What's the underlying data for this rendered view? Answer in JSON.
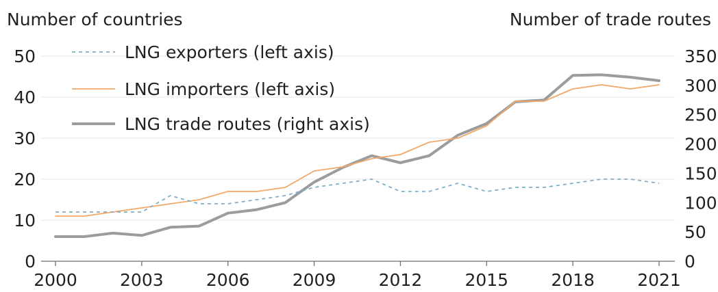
{
  "chart_data": {
    "type": "line",
    "ylabel_left": "Number of countries",
    "ylabel_right": "Number of trade routes",
    "x": [
      2000,
      2001,
      2002,
      2003,
      2004,
      2005,
      2006,
      2007,
      2008,
      2009,
      2010,
      2011,
      2012,
      2013,
      2014,
      2015,
      2016,
      2017,
      2018,
      2019,
      2020,
      2021
    ],
    "x_ticks": [
      "2000",
      "2003",
      "2006",
      "2009",
      "2012",
      "2015",
      "2018",
      "2021"
    ],
    "ylim_left": [
      0,
      50
    ],
    "yticks_left": [
      "0",
      "10",
      "20",
      "30",
      "40",
      "50"
    ],
    "ylim_right": [
      0,
      350
    ],
    "yticks_right": [
      "0",
      "50",
      "100",
      "150",
      "200",
      "250",
      "300",
      "350"
    ],
    "grid": true,
    "legend_position": "top-left",
    "series": [
      {
        "name": "LNG exporters (left axis)",
        "axis": "left",
        "style": "dashed",
        "color": "#7faec8",
        "values": [
          12,
          12,
          12,
          12,
          16,
          14,
          14,
          15,
          16,
          18,
          19,
          20,
          17,
          17,
          19,
          17,
          18,
          18,
          19,
          20,
          20,
          19
        ]
      },
      {
        "name": "LNG importers (left axis)",
        "axis": "left",
        "style": "solid",
        "color": "#f3a868",
        "values": [
          11,
          11,
          12,
          13,
          14,
          15,
          17,
          17,
          18,
          22,
          23,
          25,
          26,
          29,
          30,
          33,
          39,
          39,
          42,
          43,
          42,
          43
        ]
      },
      {
        "name": "LNG trade routes (right axis)",
        "axis": "right",
        "style": "solid",
        "color": "#9c9c9c",
        "values": [
          42,
          42,
          48,
          44,
          58,
          60,
          82,
          88,
          100,
          135,
          160,
          180,
          168,
          180,
          215,
          235,
          272,
          275,
          317,
          318,
          314,
          308
        ]
      }
    ]
  }
}
